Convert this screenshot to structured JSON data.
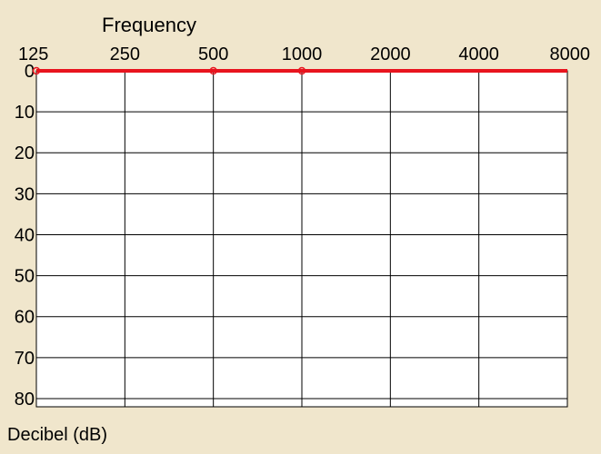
{
  "chart_data": {
    "type": "line",
    "title": "",
    "xlabel": "Frequency",
    "ylabel": "Decibel (dB)",
    "x_scale": "log2",
    "x_ticks": [
      "125",
      "250",
      "500",
      "1000",
      "2000",
      "4000",
      "8000"
    ],
    "x_range": [
      125,
      8000
    ],
    "y_ticks": [
      "0",
      "10",
      "20",
      "30",
      "40",
      "50",
      "60",
      "70",
      "80"
    ],
    "y_range": [
      0,
      82
    ],
    "y_inverted": true,
    "grid": true,
    "series": [
      {
        "color": "#e8141e",
        "x": [
          125,
          500,
          1000,
          8000
        ],
        "values": [
          0,
          0,
          0,
          0
        ],
        "markers": [
          125,
          500,
          1000
        ]
      }
    ]
  },
  "colors": {
    "background": "#f0e6cc",
    "plot_area": "#ffffff",
    "grid": "#000000",
    "series": "#e8141e"
  }
}
